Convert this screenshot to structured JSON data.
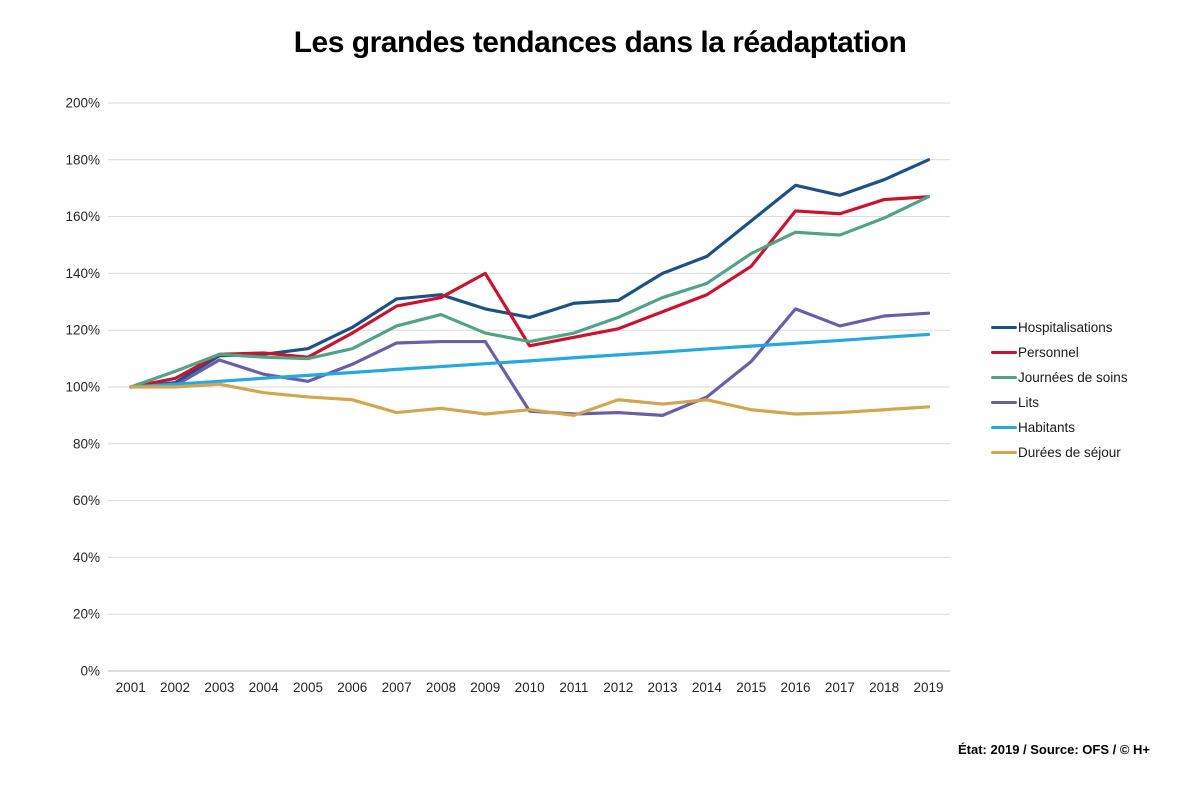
{
  "title": "Les grandes tendances dans la réadaptation",
  "footer": "État: 2019 / Source: OFS / © H+",
  "chart_data": {
    "type": "line",
    "title": "Les grandes tendances dans la réadaptation",
    "x": [
      2001,
      2002,
      2003,
      2004,
      2005,
      2006,
      2007,
      2008,
      2009,
      2010,
      2011,
      2012,
      2013,
      2014,
      2015,
      2016,
      2017,
      2018,
      2019
    ],
    "series": [
      {
        "name": "Hospitalisations",
        "color": "#1d5185",
        "values": [
          100,
          101.5,
          111,
          111.5,
          113.5,
          121,
          131,
          132.5,
          127.5,
          124.5,
          129.5,
          130.5,
          140,
          146,
          158.5,
          171,
          167.5,
          173,
          180
        ]
      },
      {
        "name": "Personnel",
        "color": "#c9132f",
        "values": [
          100,
          103,
          111.5,
          112,
          110.5,
          119,
          128.5,
          131.5,
          140,
          114.5,
          117.5,
          120.5,
          126.5,
          132.5,
          142.5,
          162,
          161,
          166,
          167
        ]
      },
      {
        "name": "Journées de soins",
        "color": "#52a385",
        "values": [
          100,
          105.5,
          111.5,
          110.5,
          110,
          113.5,
          121.5,
          125.5,
          119,
          116,
          119,
          124.5,
          131.5,
          136.5,
          147,
          154.5,
          153.5,
          159.5,
          167
        ]
      },
      {
        "name": "Lits",
        "color": "#6b5ea6",
        "values": [
          100,
          100.5,
          109.5,
          104.5,
          102,
          108,
          115.5,
          116,
          116,
          91.5,
          90.5,
          91,
          90,
          96.5,
          109,
          127.5,
          121.5,
          125,
          126
        ]
      },
      {
        "name": "Habitants",
        "color": "#27a7e0",
        "values": [
          100,
          101,
          102,
          103.1,
          104.1,
          105.1,
          106.2,
          107.2,
          108.2,
          109.2,
          110.3,
          111.3,
          112.3,
          113.4,
          114.4,
          115.4,
          116.4,
          117.5,
          118.5
        ]
      },
      {
        "name": "Durées de séjour",
        "color": "#d2a64e",
        "values": [
          100,
          100,
          101,
          98,
          96.5,
          95.5,
          91,
          92.5,
          90.5,
          92,
          90,
          95.5,
          94,
          95.5,
          92,
          90.5,
          91,
          92,
          93
        ]
      }
    ],
    "ylabel": "",
    "xlabel": "",
    "ylim": [
      0,
      200
    ],
    "ytick_step": 20,
    "ytick_suffix": "%",
    "grid": "horizontal",
    "legend_position": "right"
  }
}
